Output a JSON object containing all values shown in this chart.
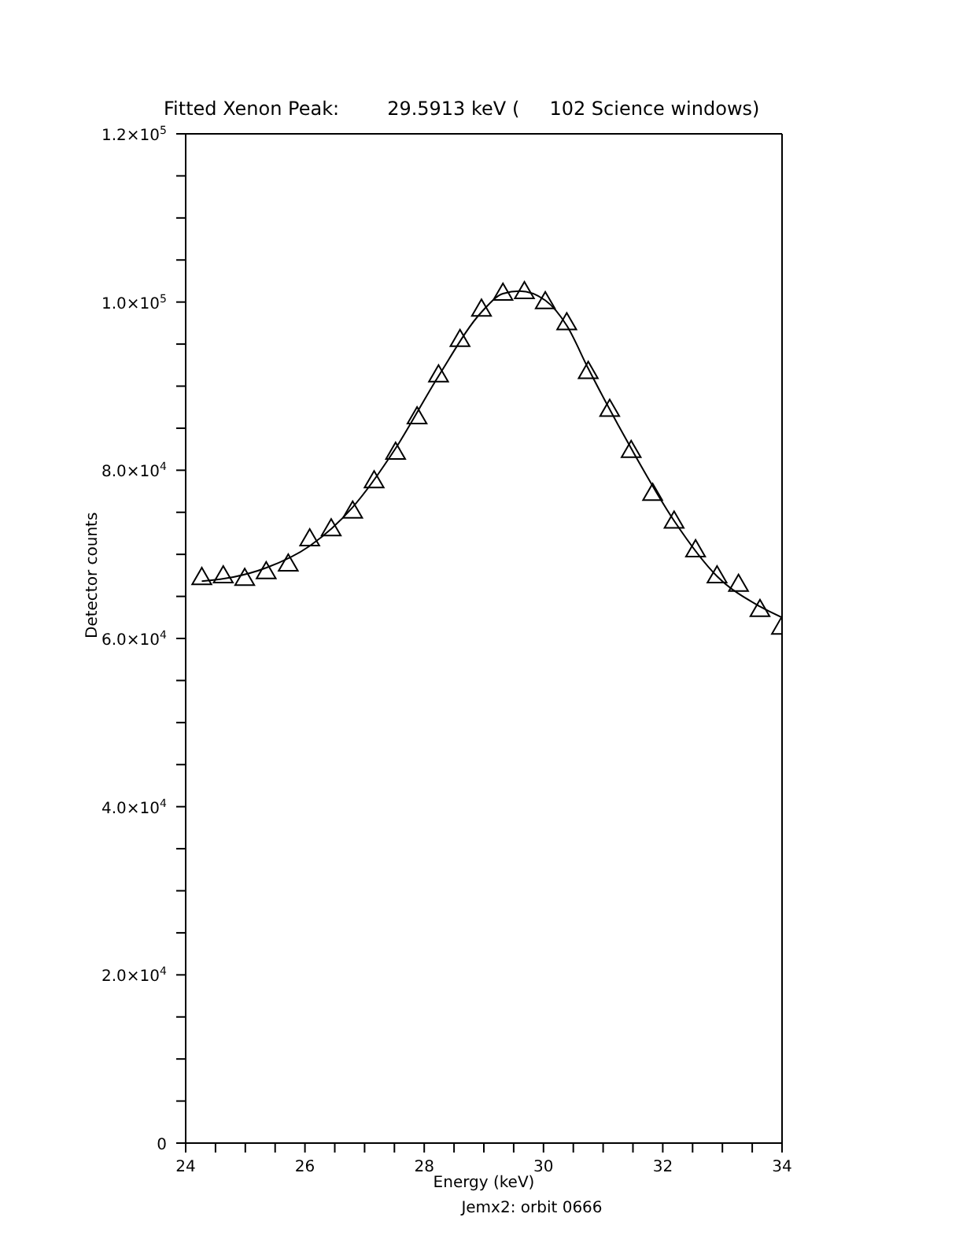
{
  "chart_data": {
    "type": "scatter",
    "title": "Fitted Xenon Peak:        29.5913 keV (     102 Science windows)",
    "xlabel": "Energy (keV)",
    "ylabel": "Detector counts",
    "annotations": [
      "Jemx2: orbit 0666"
    ],
    "series": [
      {
        "color": "#000000",
        "marker": "triangle",
        "x": [
          24.27,
          24.63,
          24.99,
          25.35,
          25.72,
          26.08,
          26.44,
          26.8,
          27.16,
          27.52,
          27.88,
          28.24,
          28.6,
          28.96,
          29.32,
          29.68,
          30.03,
          30.39,
          30.75,
          31.11,
          31.47,
          31.83,
          32.19,
          32.55,
          32.91,
          33.27,
          33.63,
          33.99
        ],
        "values": [
          67100,
          67300,
          67000,
          67800,
          68700,
          71700,
          72900,
          75000,
          78600,
          82000,
          86200,
          91200,
          95400,
          99000,
          100900,
          101100,
          99900,
          97400,
          91600,
          87100,
          82200,
          77100,
          73800,
          70400,
          67300,
          66300,
          63300,
          61200
        ]
      },
      {
        "type": "line",
        "color": "#000000",
        "marker": "none",
        "line_style": "solid",
        "x": [
          24.27,
          24.8,
          25.35,
          26.08,
          26.8,
          27.52,
          28.24,
          28.96,
          29.32,
          29.6,
          30.03,
          30.39,
          30.75,
          31.47,
          32.19,
          32.91,
          33.63,
          34.0
        ],
        "values": [
          66800,
          67300,
          68400,
          71000,
          75600,
          82600,
          91200,
          98800,
          101000,
          101300,
          100200,
          97200,
          92100,
          82600,
          74000,
          67400,
          63800,
          62500
        ]
      }
    ],
    "xlim": [
      24,
      34
    ],
    "xticks": [
      24,
      {
        "value": 24.5,
        "label": null
      },
      {
        "value": 25,
        "label": null
      },
      {
        "value": 25.5,
        "label": null
      },
      26,
      {
        "value": 26.5,
        "label": null
      },
      {
        "value": 27,
        "label": null
      },
      {
        "value": 27.5,
        "label": null
      },
      28,
      {
        "value": 28.5,
        "label": null
      },
      {
        "value": 29,
        "label": null
      },
      {
        "value": 29.5,
        "label": null
      },
      30,
      {
        "value": 30.5,
        "label": null
      },
      {
        "value": 31,
        "label": null
      },
      {
        "value": 31.5,
        "label": null
      },
      32,
      {
        "value": 32.5,
        "label": null
      },
      {
        "value": 33,
        "label": null
      },
      {
        "value": 33.5,
        "label": null
      },
      34
    ],
    "ylim": [
      0,
      120000
    ],
    "yticks": [
      0,
      {
        "value": 5000,
        "label": null
      },
      {
        "value": 10000,
        "label": null
      },
      {
        "value": 15000,
        "label": null
      },
      {
        "value": 20000,
        "label": "2.0×10$^{4}$"
      },
      {
        "value": 25000,
        "label": null
      },
      {
        "value": 30000,
        "label": null
      },
      {
        "value": 35000,
        "label": null
      },
      {
        "value": 40000,
        "label": "4.0×10$^{4}$"
      },
      {
        "value": 45000,
        "label": null
      },
      {
        "value": 50000,
        "label": null
      },
      {
        "value": 55000,
        "label": null
      },
      {
        "value": 60000,
        "label": "6.0×10$^{4}$"
      },
      {
        "value": 65000,
        "label": null
      },
      {
        "value": 70000,
        "label": null
      },
      {
        "value": 75000,
        "label": null
      },
      {
        "value": 80000,
        "label": "8.0×10$^{4}$"
      },
      {
        "value": 85000,
        "label": null
      },
      {
        "value": 90000,
        "label": null
      },
      {
        "value": 95000,
        "label": null
      },
      {
        "value": 100000,
        "label": "1.0×10$^{5}$"
      },
      {
        "value": 105000,
        "label": null
      },
      {
        "value": 110000,
        "label": null
      },
      {
        "value": 115000,
        "label": null
      },
      {
        "value": 120000,
        "label": "1.2×10$^{5}$"
      }
    ]
  }
}
